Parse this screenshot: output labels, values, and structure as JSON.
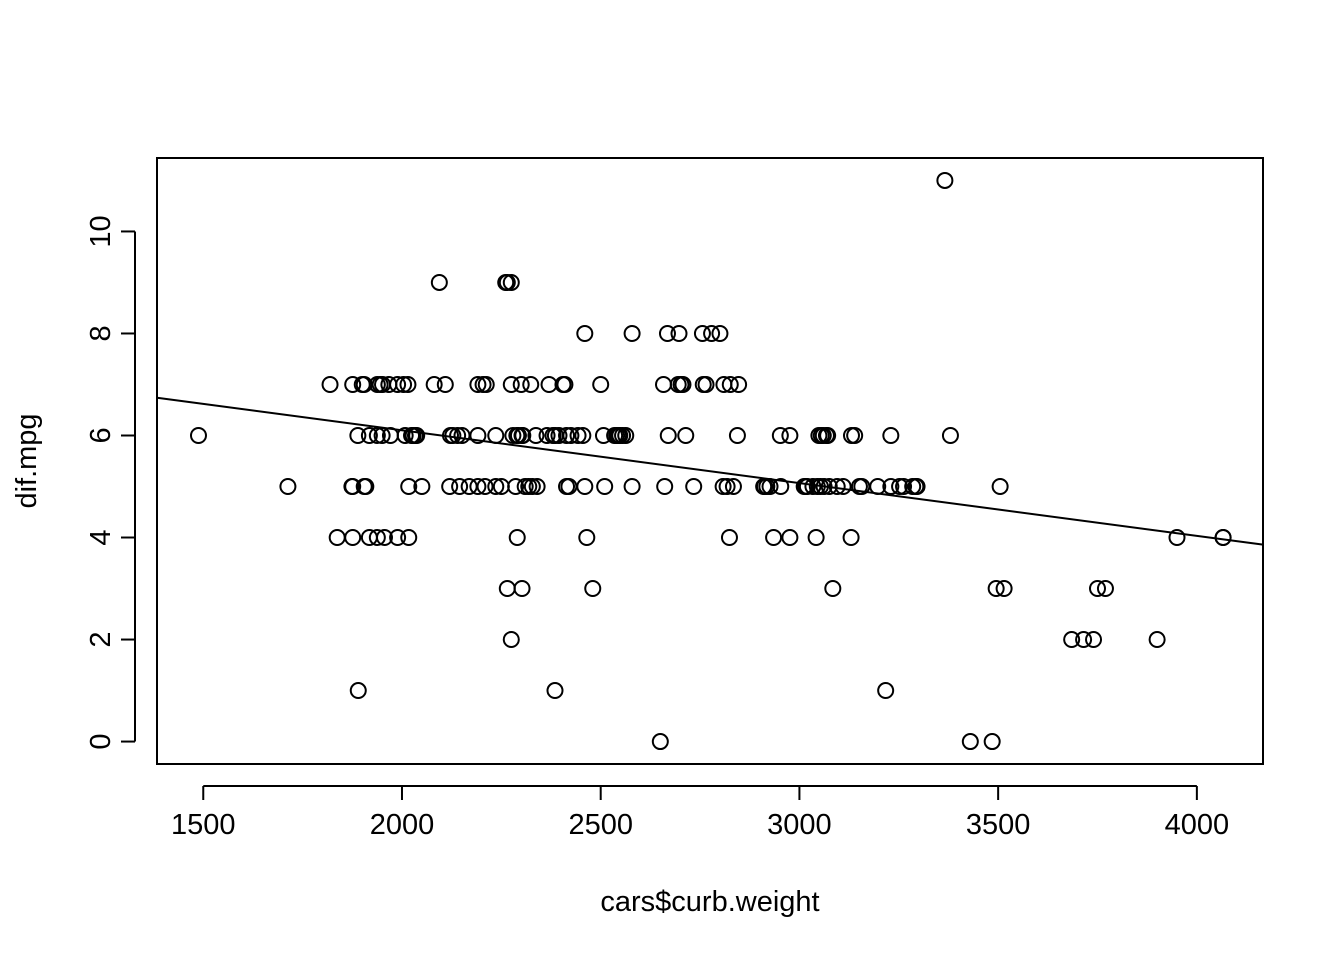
{
  "chart_data": {
    "type": "scatter",
    "title": "",
    "xlabel": "cars$curb.weight",
    "ylabel": "dif.mpg",
    "xlim": [
      1383.6,
      4166.4
    ],
    "ylim": [
      -0.44,
      11.44
    ],
    "xticks": [
      1500,
      2000,
      2500,
      3000,
      3500,
      4000
    ],
    "yticks": [
      0,
      2,
      4,
      6,
      8,
      10
    ],
    "xtick_labels": [
      "1500",
      "2000",
      "2500",
      "3000",
      "3500",
      "4000"
    ],
    "ytick_labels": [
      "0",
      "2",
      "4",
      "6",
      "8",
      "10"
    ],
    "grid": false,
    "legend": "none",
    "point_style": "open-circle",
    "regression_line": {
      "x": [
        1383.6,
        4166.4
      ],
      "y": [
        6.74,
        3.86
      ]
    },
    "points": [
      [
        1488,
        6
      ],
      [
        1713,
        5
      ],
      [
        1819,
        7
      ],
      [
        1837,
        4
      ],
      [
        1874,
        5
      ],
      [
        1876,
        5
      ],
      [
        1876,
        7
      ],
      [
        1876,
        4
      ],
      [
        1889,
        6
      ],
      [
        1890,
        1
      ],
      [
        1900,
        7
      ],
      [
        1905,
        7
      ],
      [
        1905,
        5
      ],
      [
        1909,
        5
      ],
      [
        1918,
        4
      ],
      [
        1918,
        6
      ],
      [
        1938,
        7
      ],
      [
        1938,
        6
      ],
      [
        1938,
        4
      ],
      [
        1945,
        7
      ],
      [
        1950,
        6
      ],
      [
        1951,
        7
      ],
      [
        1956,
        4
      ],
      [
        1967,
        7
      ],
      [
        1971,
        6
      ],
      [
        1989,
        7
      ],
      [
        1989,
        4
      ],
      [
        2004,
        7
      ],
      [
        2008,
        6
      ],
      [
        2015,
        7
      ],
      [
        2017,
        5
      ],
      [
        2017,
        4
      ],
      [
        2024,
        6
      ],
      [
        2028,
        6
      ],
      [
        2034,
        6
      ],
      [
        2037,
        6
      ],
      [
        2050,
        5
      ],
      [
        2081,
        7
      ],
      [
        2094,
        9
      ],
      [
        2109,
        7
      ],
      [
        2120,
        5
      ],
      [
        2122,
        6
      ],
      [
        2128,
        6
      ],
      [
        2140,
        6
      ],
      [
        2145,
        5
      ],
      [
        2151,
        6
      ],
      [
        2169,
        5
      ],
      [
        2191,
        7
      ],
      [
        2191,
        6
      ],
      [
        2191,
        5
      ],
      [
        2204,
        7
      ],
      [
        2209,
        5
      ],
      [
        2212,
        7
      ],
      [
        2236,
        6
      ],
      [
        2236,
        5
      ],
      [
        2250,
        5
      ],
      [
        2261,
        9
      ],
      [
        2265,
        9
      ],
      [
        2265,
        3
      ],
      [
        2275,
        9
      ],
      [
        2275,
        7
      ],
      [
        2275,
        2
      ],
      [
        2279,
        6
      ],
      [
        2286,
        5
      ],
      [
        2289,
        6
      ],
      [
        2290,
        4
      ],
      [
        2293,
        6
      ],
      [
        2300,
        7
      ],
      [
        2302,
        6
      ],
      [
        2302,
        3
      ],
      [
        2304,
        6
      ],
      [
        2310,
        5
      ],
      [
        2319,
        5
      ],
      [
        2324,
        7
      ],
      [
        2328,
        5
      ],
      [
        2337,
        6
      ],
      [
        2340,
        5
      ],
      [
        2365,
        6
      ],
      [
        2370,
        7
      ],
      [
        2380,
        6
      ],
      [
        2385,
        1
      ],
      [
        2386,
        6
      ],
      [
        2395,
        6
      ],
      [
        2405,
        7
      ],
      [
        2410,
        7
      ],
      [
        2414,
        6
      ],
      [
        2414,
        5
      ],
      [
        2420,
        5
      ],
      [
        2425,
        6
      ],
      [
        2443,
        6
      ],
      [
        2455,
        6
      ],
      [
        2460,
        8
      ],
      [
        2460,
        5
      ],
      [
        2465,
        4
      ],
      [
        2480,
        3
      ],
      [
        2500,
        7
      ],
      [
        2507,
        6
      ],
      [
        2510,
        5
      ],
      [
        2535,
        6
      ],
      [
        2540,
        6
      ],
      [
        2545,
        6
      ],
      [
        2548,
        6
      ],
      [
        2555,
        6
      ],
      [
        2563,
        6
      ],
      [
        2579,
        8
      ],
      [
        2579,
        5
      ],
      [
        2650,
        0
      ],
      [
        2658,
        7
      ],
      [
        2661,
        5
      ],
      [
        2668,
        8
      ],
      [
        2670,
        6
      ],
      [
        2695,
        7
      ],
      [
        2697,
        8
      ],
      [
        2702,
        7
      ],
      [
        2707,
        7
      ],
      [
        2714,
        6
      ],
      [
        2734,
        5
      ],
      [
        2756,
        8
      ],
      [
        2758,
        7
      ],
      [
        2765,
        7
      ],
      [
        2779,
        8
      ],
      [
        2800,
        8
      ],
      [
        2808,
        5
      ],
      [
        2810,
        7
      ],
      [
        2818,
        5
      ],
      [
        2824,
        4
      ],
      [
        2826,
        7
      ],
      [
        2834,
        5
      ],
      [
        2844,
        6
      ],
      [
        2847,
        7
      ],
      [
        2910,
        5
      ],
      [
        2912,
        5
      ],
      [
        2918,
        5
      ],
      [
        2926,
        5
      ],
      [
        2935,
        4
      ],
      [
        2952,
        6
      ],
      [
        2953,
        5
      ],
      [
        2976,
        4
      ],
      [
        2976,
        6
      ],
      [
        3012,
        5
      ],
      [
        3016,
        5
      ],
      [
        3020,
        5
      ],
      [
        3034,
        5
      ],
      [
        3042,
        4
      ],
      [
        3045,
        5
      ],
      [
        3049,
        6
      ],
      [
        3053,
        5
      ],
      [
        3055,
        6
      ],
      [
        3060,
        6
      ],
      [
        3062,
        5
      ],
      [
        3068,
        6
      ],
      [
        3071,
        6
      ],
      [
        3075,
        5
      ],
      [
        3084,
        3
      ],
      [
        3095,
        5
      ],
      [
        3110,
        5
      ],
      [
        3130,
        4
      ],
      [
        3131,
        6
      ],
      [
        3139,
        6
      ],
      [
        3151,
        5
      ],
      [
        3157,
        5
      ],
      [
        3197,
        5
      ],
      [
        3217,
        1
      ],
      [
        3230,
        6
      ],
      [
        3230,
        5
      ],
      [
        3252,
        5
      ],
      [
        3262,
        5
      ],
      [
        3285,
        5
      ],
      [
        3293,
        5
      ],
      [
        3296,
        5
      ],
      [
        3366,
        11
      ],
      [
        3380,
        6
      ],
      [
        3430,
        0
      ],
      [
        3485,
        0
      ],
      [
        3495,
        3
      ],
      [
        3505,
        5
      ],
      [
        3515,
        3
      ],
      [
        3685,
        2
      ],
      [
        3715,
        2
      ],
      [
        3740,
        2
      ],
      [
        3750,
        3
      ],
      [
        3770,
        3
      ],
      [
        3900,
        2
      ],
      [
        3950,
        4
      ],
      [
        4066,
        4
      ],
      [
        4066,
        4
      ]
    ]
  }
}
